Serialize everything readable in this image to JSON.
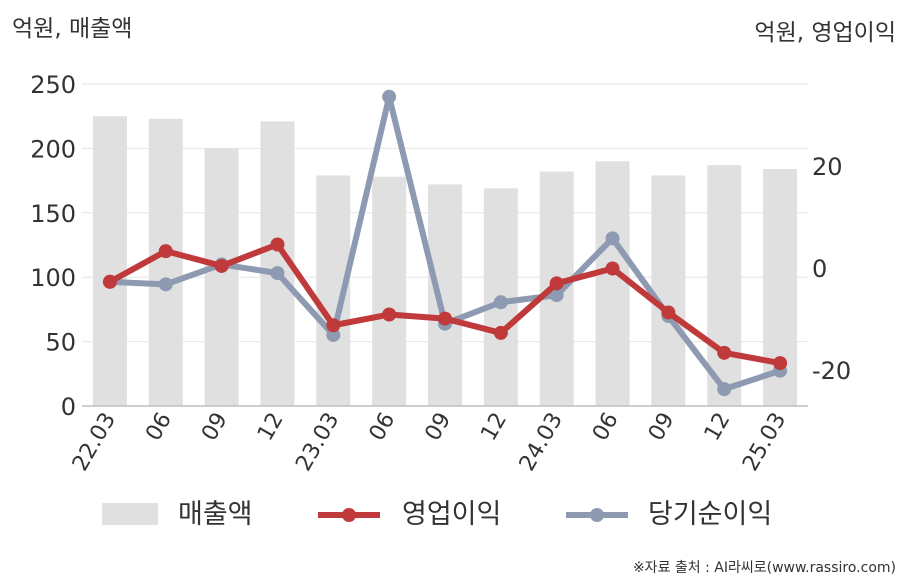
{
  "chart_data": {
    "type": "bar+line",
    "categories": [
      "22.03",
      "06",
      "09",
      "12",
      "23.03",
      "06",
      "09",
      "12",
      "24.03",
      "06",
      "09",
      "12",
      "25.03"
    ],
    "left_axis_unit": "억원, 매출액",
    "right_axis_unit": "억원, 영업이익",
    "left_ticks": [
      "0",
      "50",
      "100",
      "150",
      "200",
      "250"
    ],
    "right_ticks": [
      "-20",
      "0",
      "20"
    ],
    "ylim_left": [
      0,
      250
    ],
    "ylim_right": [
      -27,
      36
    ],
    "grid": true,
    "legend_position": "bottom",
    "series": [
      {
        "name": "매출액",
        "kind": "bar",
        "axis": "left",
        "color": "#e0e0e0",
        "values": [
          225,
          223,
          200,
          221,
          179,
          178,
          172,
          169,
          182,
          190,
          179,
          187,
          184
        ]
      },
      {
        "name": "영업이익",
        "kind": "line",
        "axis": "right",
        "color": "#c0393b",
        "values": [
          -2.7,
          3.3,
          0.4,
          4.6,
          -11.2,
          -9.1,
          -9.9,
          -12.7,
          -3.0,
          -0.1,
          -8.7,
          -16.6,
          -18.6
        ]
      },
      {
        "name": "당기순이익",
        "kind": "line",
        "axis": "right",
        "color": "#8e9ab2",
        "values": [
          -2.7,
          -3.2,
          0.7,
          -1.0,
          -13.1,
          33.5,
          -10.9,
          -6.7,
          -5.3,
          5.8,
          -9.4,
          -23.7,
          -20.1
        ]
      }
    ],
    "legend": [
      "매출액",
      "영업이익",
      "당기순이익"
    ]
  },
  "source": "※자료 출처 : AI라씨로(www.rassiro.com)"
}
